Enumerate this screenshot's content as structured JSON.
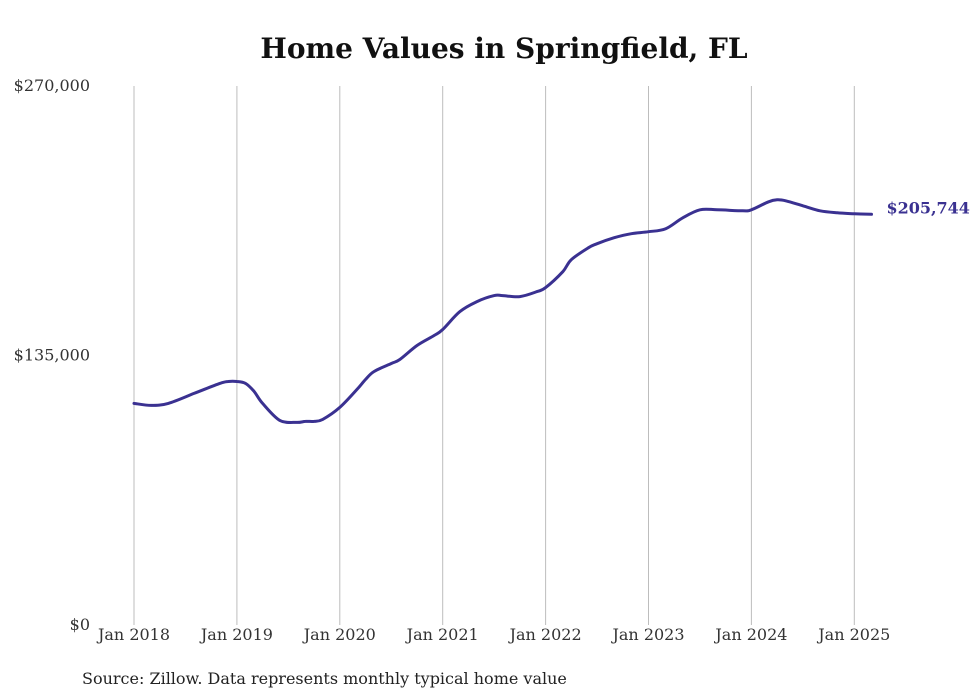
{
  "chart_data": {
    "type": "line",
    "title": "Home Values in Springfield, FL",
    "source": "Source: Zillow. Data represents monthly typical home value",
    "ylim": [
      0,
      270000
    ],
    "y_ticks": [
      "$270,000",
      "$135,000",
      "$0"
    ],
    "y_tick_values": [
      270000,
      135000,
      0
    ],
    "x_ticks": [
      "Jan 2018",
      "Jan 2019",
      "Jan 2020",
      "Jan 2021",
      "Jan 2022",
      "Jan 2023",
      "Jan 2024",
      "Jan 2025"
    ],
    "x_range": [
      "2018-01",
      "2025-03"
    ],
    "grid": "vertical",
    "color": "#3a3191",
    "end_label": "$205,744",
    "series": [
      {
        "x": [
          "2018-01",
          "2018-03",
          "2018-05",
          "2018-08",
          "2018-11",
          "2018-12",
          "2019-01",
          "2019-02",
          "2019-03",
          "2019-04",
          "2019-06",
          "2019-08",
          "2019-09",
          "2019-10",
          "2019-11",
          "2020-01",
          "2020-03",
          "2020-04",
          "2020-05",
          "2020-07",
          "2020-08",
          "2020-10",
          "2020-12",
          "2021-01",
          "2021-03",
          "2021-05",
          "2021-07",
          "2021-08",
          "2021-10",
          "2021-12",
          "2022-01",
          "2022-03",
          "2022-04",
          "2022-06",
          "2022-07",
          "2022-09",
          "2022-11",
          "2023-01",
          "2023-03",
          "2023-05",
          "2023-07",
          "2023-09",
          "2023-12",
          "2024-01",
          "2024-03",
          "2024-04",
          "2024-05",
          "2024-07",
          "2024-09",
          "2024-11",
          "2025-01",
          "2025-03"
        ],
        "values": [
          111000,
          110000,
          111000,
          116000,
          121000,
          122000,
          122000,
          121000,
          117000,
          111000,
          102500,
          101500,
          102000,
          102000,
          103000,
          109000,
          118000,
          123000,
          127000,
          131000,
          133000,
          140000,
          145000,
          148000,
          157000,
          162000,
          165000,
          165000,
          164500,
          167000,
          169000,
          177000,
          183000,
          189000,
          191000,
          194000,
          196000,
          197000,
          198500,
          204000,
          208000,
          208000,
          207500,
          208000,
          212000,
          213000,
          212500,
          210000,
          207500,
          206500,
          206000,
          205744
        ]
      }
    ]
  }
}
